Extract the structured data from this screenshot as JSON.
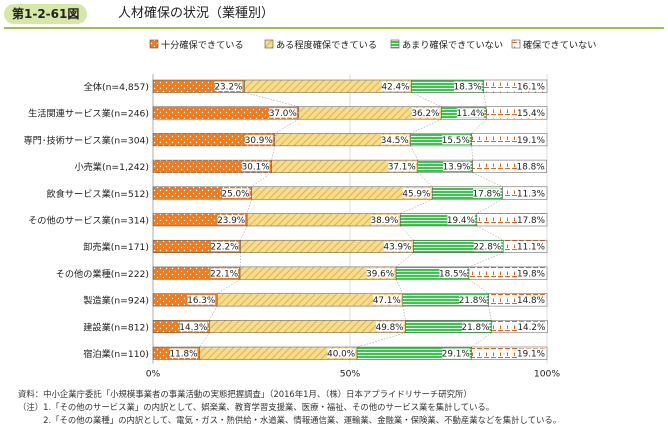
{
  "header": {
    "figure_no": "第1-2-61図",
    "title": "人材確保の状況（業種別）"
  },
  "colors": {
    "header_badge": "#d7e7a6",
    "header_rule": "#9cc24a",
    "series": [
      "#f07a1c",
      "#f6d47a",
      "#3cc44e",
      "#ffffff"
    ],
    "series_accent": [
      "#ffffff",
      "#d6ab3a",
      "#ffffff",
      "#e0661a"
    ]
  },
  "chart_data": {
    "type": "bar",
    "orientation": "horizontal",
    "stacked": true,
    "categories": [
      "全体(n=4,857)",
      "生活関連サービス業(n=246)",
      "専門･技術サービス業(n=304)",
      "小売業(n=1,242)",
      "飲食サービス業(n=512)",
      "その他のサービス業(n=314)",
      "卸売業(n=171)",
      "その他の業種(n=222)",
      "製造業(n=924)",
      "建設業(n=812)",
      "宿泊業(n=110)"
    ],
    "series": [
      {
        "name": "十分確保できている",
        "values": [
          23.2,
          37.0,
          30.9,
          30.1,
          25.0,
          23.9,
          22.2,
          22.1,
          16.3,
          14.3,
          11.8
        ]
      },
      {
        "name": "ある程度確保できている",
        "values": [
          42.4,
          36.2,
          34.5,
          37.1,
          45.9,
          38.9,
          43.9,
          39.6,
          47.1,
          49.8,
          40.0
        ]
      },
      {
        "name": "あまり確保できていない",
        "values": [
          18.3,
          11.4,
          15.5,
          13.9,
          17.8,
          19.4,
          22.8,
          18.5,
          21.8,
          21.8,
          29.1
        ]
      },
      {
        "name": "確保できていない",
        "values": [
          16.1,
          15.4,
          19.1,
          18.8,
          11.3,
          17.8,
          11.1,
          19.8,
          14.8,
          14.2,
          19.1
        ]
      }
    ],
    "data_labels": [
      [
        "23.2%",
        "42.4%",
        "18.3%",
        "16.1%"
      ],
      [
        "37.0%",
        "36.2%",
        "11.4%",
        "15.4%"
      ],
      [
        "30.9%",
        "34.5%",
        "15.5%",
        "19.1%"
      ],
      [
        "30.1%",
        "37.1%",
        "13.9%",
        "18.8%"
      ],
      [
        "25.0%",
        "45.9%",
        "17.8%",
        "11.3%"
      ],
      [
        "23.9%",
        "38.9%",
        "19.4%",
        "17.8%"
      ],
      [
        "22.2%",
        "43.9%",
        "22.8%",
        "11.1%"
      ],
      [
        "22.1%",
        "39.6%",
        "18.5%",
        "19.8%"
      ],
      [
        "16.3%",
        "47.1%",
        "21.8%",
        "14.8%"
      ],
      [
        "14.3%",
        "49.8%",
        "21.8%",
        "14.2%"
      ],
      [
        "11.8%",
        "40.0%",
        "29.1%",
        "19.1%"
      ]
    ],
    "x_ticks": [
      "0%",
      "50%",
      "100%"
    ],
    "xlim": [
      0,
      100
    ],
    "legend_position": "top",
    "connector_lines": true
  },
  "notes": [
    "資料：中小企業庁委託「小規模事業者の事業活動の実態把握調査」（2016年1月、（株）日本アプライドリサーチ研究所）",
    "（注）1.「その他のサービス業」の内訳として、娯楽業、教育学習支援業、医療・福祉、その他のサービス業を集計している。",
    "　　　2.「その他の業種」の内訳として、電気・ガス・熱供給・水道業、情報通信業、運輸業、金融業・保険業、不動産業などを集計している。"
  ]
}
